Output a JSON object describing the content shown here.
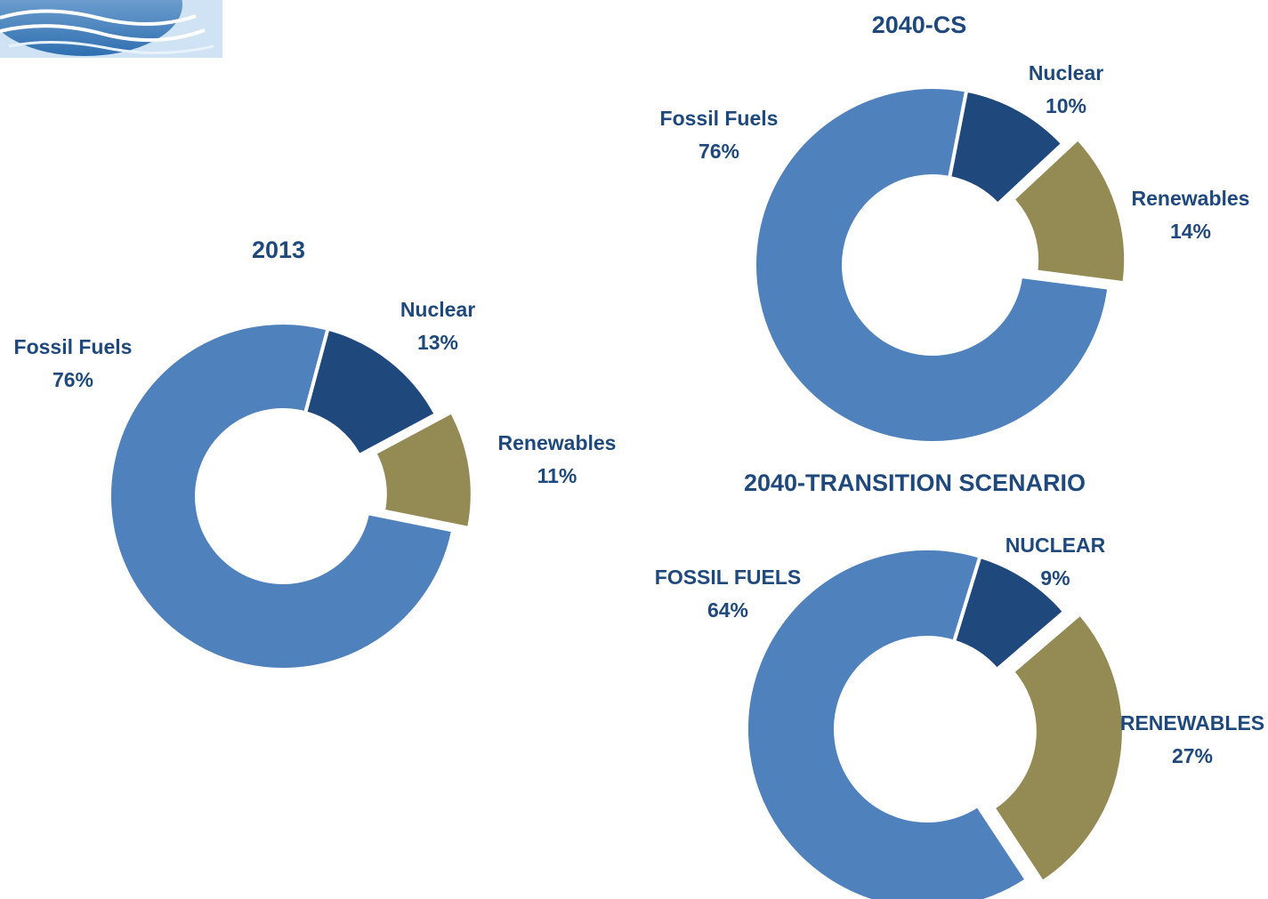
{
  "chart_data": [
    {
      "type": "donut",
      "title": "2013",
      "categories": [
        "Fossil Fuels",
        "Nuclear",
        "Renewables"
      ],
      "values": [
        76,
        13,
        11
      ],
      "value_labels": [
        "76%",
        "13%",
        "11%"
      ],
      "colors": [
        "#4f81bd",
        "#1f497d",
        "#948a54"
      ]
    },
    {
      "type": "donut",
      "title": "2040-CS",
      "categories": [
        "Fossil Fuels",
        "Nuclear",
        "Renewables"
      ],
      "values": [
        76,
        10,
        14
      ],
      "value_labels": [
        "76%",
        "10%",
        "14%"
      ],
      "colors": [
        "#4f81bd",
        "#1f497d",
        "#948a54"
      ]
    },
    {
      "type": "donut",
      "title": "2040-TRANSITION SCENARIO",
      "categories": [
        "FOSSIL FUELS",
        "NUCLEAR",
        "RENEWABLES"
      ],
      "values": [
        64,
        9,
        27
      ],
      "value_labels": [
        "64%",
        "9%",
        "27%"
      ],
      "colors": [
        "#4f81bd",
        "#1f497d",
        "#948a54"
      ]
    }
  ]
}
